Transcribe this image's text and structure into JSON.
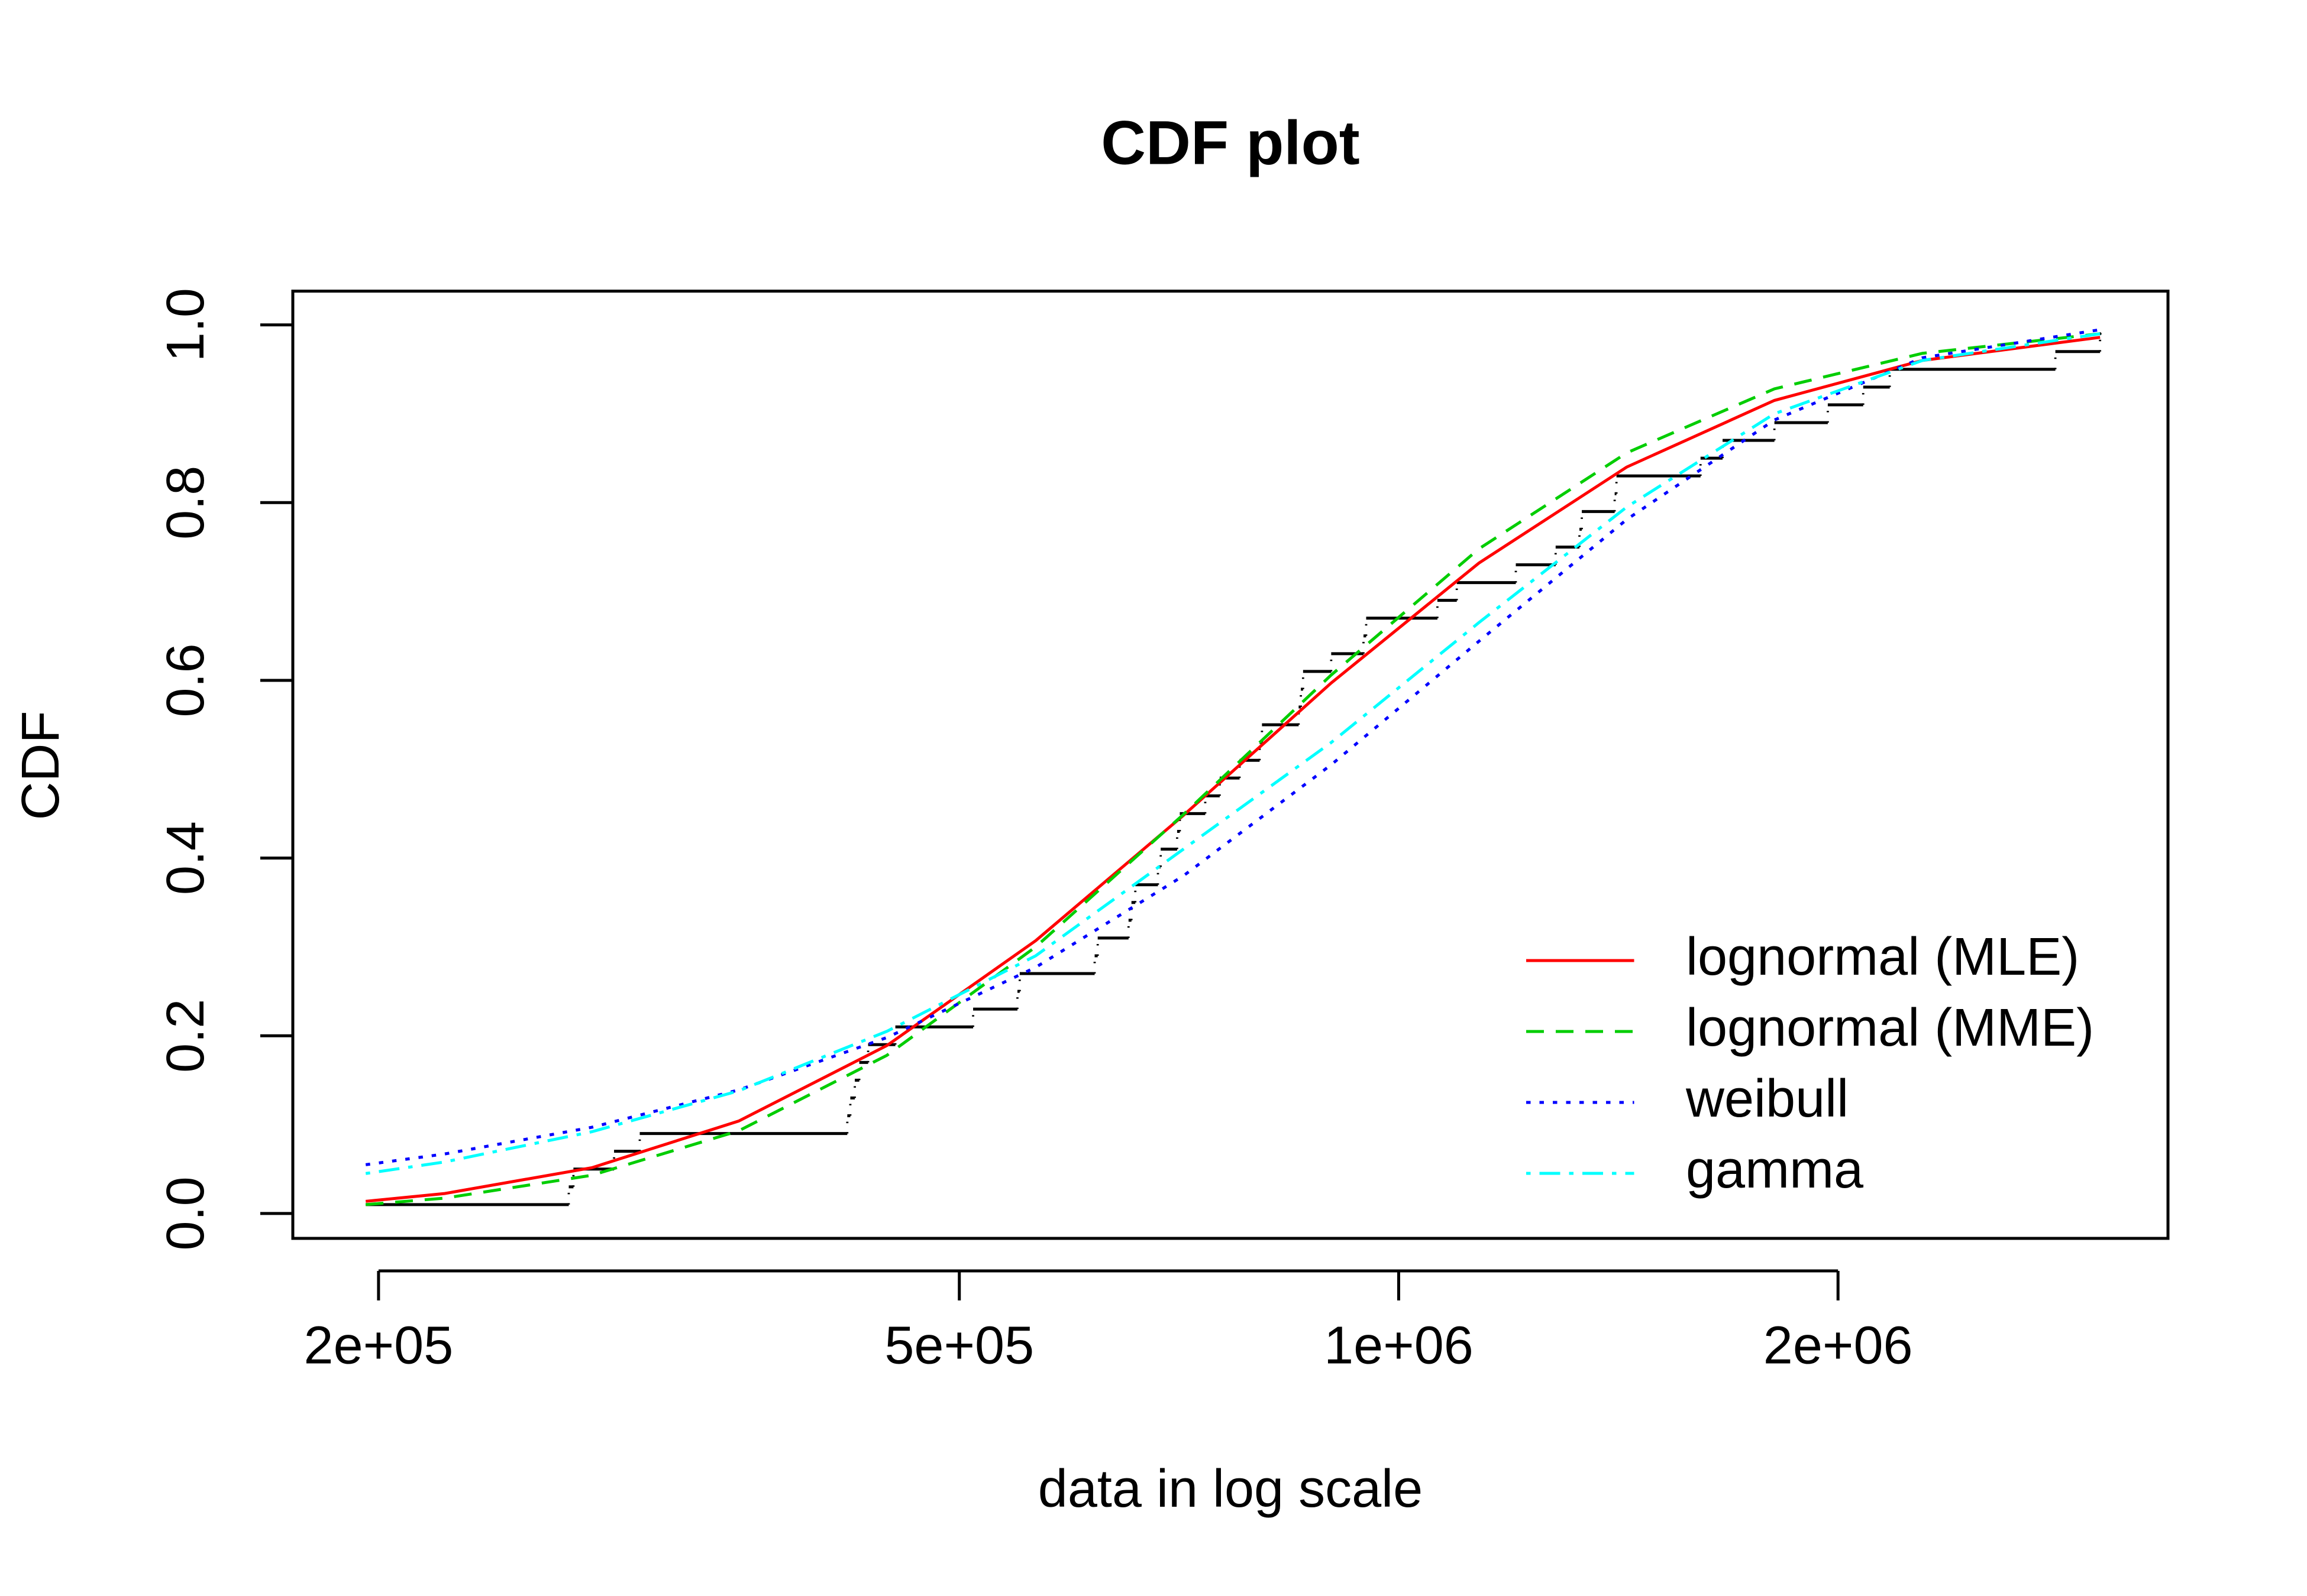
{
  "chart_data": {
    "type": "line",
    "title": "CDF plot",
    "x_label": "data in log scale",
    "y_label": "CDF",
    "xscale": "log",
    "xlim": [
      174700,
      3366000
    ],
    "ylim": [
      -0.028,
      1.038
    ],
    "xticks": [
      {
        "value": 200000,
        "label": "2e+05"
      },
      {
        "value": 500000,
        "label": "5e+05"
      },
      {
        "value": 1000000,
        "label": "1e+06"
      },
      {
        "value": 2000000,
        "label": "2e+06"
      }
    ],
    "yticks": [
      {
        "value": 0,
        "label": "0.0"
      },
      0.2,
      0.4,
      0.6,
      0.8,
      {
        "value": 1,
        "label": "1.0"
      }
    ],
    "legend": "bottomright",
    "empirical": {
      "color": "#000000",
      "style": "step",
      "x": [
        196000,
        270000,
        272000,
        290000,
        302000,
        419000,
        421000,
        424000,
        427000,
        433000,
        452000,
        511000,
        548000,
        550000,
        619000,
        622000,
        653000,
        656000,
        660000,
        684000,
        687000,
        705000,
        708000,
        737000,
        754000,
        778000,
        803000,
        806000,
        854000,
        857000,
        860000,
        899000,
        946000,
        950000,
        1063000,
        1096000,
        1203000,
        1281000,
        1330000,
        1335000,
        1406000,
        1410000,
        1610000,
        1667000,
        1809000,
        1968000,
        2081000,
        2170000,
        2818000,
        3024000
      ],
      "values": [
        0.01,
        0.03,
        0.05,
        0.07,
        0.09,
        0.11,
        0.13,
        0.15,
        0.17,
        0.19,
        0.21,
        0.23,
        0.25,
        0.27,
        0.29,
        0.31,
        0.33,
        0.35,
        0.37,
        0.39,
        0.41,
        0.43,
        0.45,
        0.47,
        0.49,
        0.51,
        0.53,
        0.55,
        0.57,
        0.59,
        0.61,
        0.63,
        0.65,
        0.67,
        0.69,
        0.71,
        0.73,
        0.75,
        0.77,
        0.79,
        0.81,
        0.83,
        0.85,
        0.87,
        0.89,
        0.91,
        0.93,
        0.95,
        0.97,
        0.99
      ]
    },
    "x": [
      196000,
      222000,
      280000,
      353000,
      446000,
      564000,
      712000,
      899000,
      1135000,
      1433000,
      1809000,
      2285000,
      3024000
    ],
    "series": [
      {
        "name": "lognormal (MLE)",
        "color": "#ff0000",
        "dash": "solid",
        "values": [
          0.0137,
          0.0225,
          0.0515,
          0.104,
          0.189,
          0.307,
          0.448,
          0.597,
          0.732,
          0.84,
          0.915,
          0.96,
          0.986
        ]
      },
      {
        "name": "lognormal (MME)",
        "color": "#00cd00",
        "dash": "dashed",
        "values": [
          0.01,
          0.0173,
          0.043,
          0.093,
          0.178,
          0.3,
          0.449,
          0.606,
          0.748,
          0.856,
          0.928,
          0.968,
          0.99
        ]
      },
      {
        "name": "weibull",
        "color": "#0000ff",
        "dash": "dotted",
        "values": [
          0.0549,
          0.067,
          0.097,
          0.139,
          0.198,
          0.277,
          0.38,
          0.505,
          0.644,
          0.781,
          0.893,
          0.963,
          0.9946
        ]
      },
      {
        "name": "gamma",
        "color": "#00ffff",
        "dash": "dotdash",
        "values": [
          0.045,
          0.058,
          0.092,
          0.138,
          0.205,
          0.29,
          0.41,
          0.53,
          0.665,
          0.795,
          0.9,
          0.96,
          0.99
        ]
      }
    ]
  }
}
